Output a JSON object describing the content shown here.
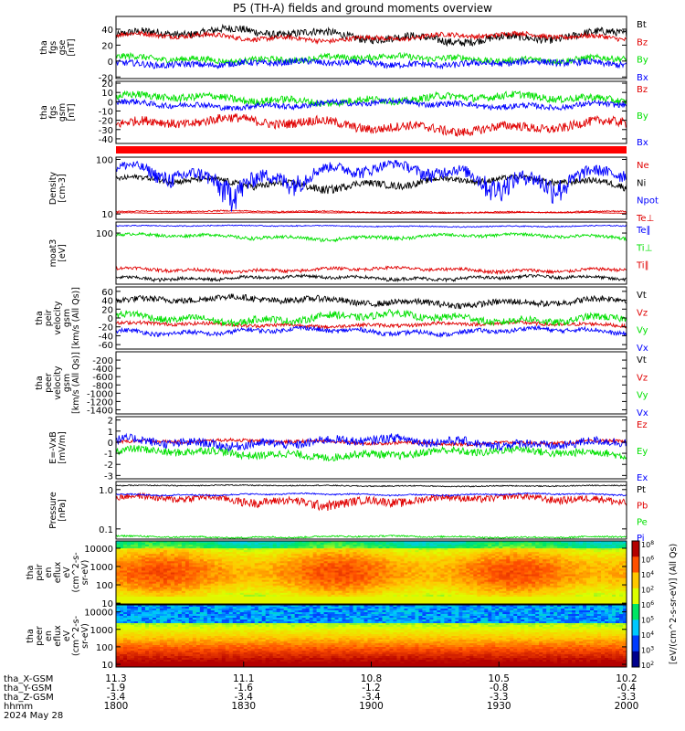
{
  "title": "P5 (TH-A) fields and ground moments overview",
  "footer": {
    "date": "2024 May 28",
    "rows": [
      {
        "label": "tha_X-GSM",
        "values": [
          "11.3",
          "11.1",
          "10.8",
          "10.5",
          "10.2"
        ]
      },
      {
        "label": "tha_Y-GSM",
        "values": [
          "-1.9",
          "-1.6",
          "-1.2",
          "-0.8",
          "-0.4"
        ]
      },
      {
        "label": "tha_Z-GSM",
        "values": [
          "-3.4",
          "-3.4",
          "-3.4",
          "-3.3",
          "-3.3"
        ]
      },
      {
        "label": "hhmm",
        "values": [
          "1800",
          "1830",
          "1900",
          "1930",
          "2000"
        ]
      }
    ]
  },
  "chart_data": [
    {
      "type": "line",
      "ylabel": [
        "tha",
        "fgs",
        "gse",
        "[nT]"
      ],
      "ylim": [
        -22,
        56
      ],
      "ticks": [
        -20,
        0,
        20,
        40
      ],
      "series": [
        {
          "name": "Bt",
          "color": "#000000",
          "base": 32,
          "amp": 9,
          "jit": 5
        },
        {
          "name": "Bz",
          "color": "#e00000",
          "base": 30,
          "amp": 5,
          "jit": 3
        },
        {
          "name": "By",
          "color": "#00e000",
          "base": 3,
          "amp": 4,
          "jit": 4
        },
        {
          "name": "Bx",
          "color": "#0000ff",
          "base": -3,
          "amp": 3,
          "jit": 4
        }
      ]
    },
    {
      "type": "line",
      "ylabel": [
        "tha",
        "fgs",
        "gsm",
        "[nT]"
      ],
      "ylim": [
        -45,
        22
      ],
      "ticks": [
        -40,
        -30,
        -20,
        -10,
        0,
        10,
        20
      ],
      "series": [
        {
          "name": "Bz",
          "color": "#e00000",
          "base": -25,
          "amp": 8,
          "jit": 5
        },
        {
          "name": "By",
          "color": "#00e000",
          "base": 3,
          "amp": 5,
          "jit": 4
        },
        {
          "name": "Bx",
          "color": "#0000ff",
          "base": -3,
          "amp": 4,
          "jit": 3
        }
      ]
    },
    {
      "type": "line",
      "ylabel": [
        "Density",
        "[cm-3]"
      ],
      "scale": "log",
      "ylim": [
        8,
        110
      ],
      "ticks": [
        10,
        100
      ],
      "series": [
        {
          "name": "Ne",
          "color": "#e00000",
          "base": 11,
          "amp": 0.5,
          "jit": 0.3
        },
        {
          "name": "Ni",
          "color": "#000000",
          "base": 38,
          "amp": 10,
          "jit": 5
        },
        {
          "name": "Npot",
          "color": "#0000ff",
          "base": 55,
          "amp": 30,
          "jit": 15
        },
        {
          "name": "Te⊥",
          "color": "#e00000",
          "base": 10.5,
          "amp": 0.2,
          "jit": 0.1
        }
      ]
    },
    {
      "type": "line",
      "ylabel": [
        "moat3",
        "[eV]"
      ],
      "scale": "log",
      "ylim": [
        4,
        200
      ],
      "ticks": [
        100
      ],
      "series": [
        {
          "name": "Te∥",
          "color": "#0000ff",
          "base": 155,
          "amp": 8,
          "jit": 5
        },
        {
          "name": "Ti⊥",
          "color": "#00e000",
          "base": 80,
          "amp": 15,
          "jit": 8
        },
        {
          "name": "Ti∥",
          "color": "#e00000",
          "base": 10,
          "amp": 1.5,
          "jit": 1
        },
        {
          "name": "",
          "color": "#000000",
          "base": 6,
          "amp": 0.8,
          "jit": 0.6
        }
      ]
    },
    {
      "type": "line",
      "ylabel": [
        "tha",
        "peir",
        "velocity",
        "gsm",
        "[km/s (All Qs)]"
      ],
      "ylim": [
        -70,
        70
      ],
      "ticks": [
        -60,
        -40,
        -20,
        0,
        20,
        40,
        60
      ],
      "series": [
        {
          "name": "Vt",
          "color": "#000000",
          "base": 38,
          "amp": 10,
          "jit": 7
        },
        {
          "name": "Vz",
          "color": "#e00000",
          "base": -15,
          "amp": 5,
          "jit": 4
        },
        {
          "name": "Vy",
          "color": "#00e000",
          "base": 0,
          "amp": 12,
          "jit": 8
        },
        {
          "name": "Vx",
          "color": "#0000ff",
          "base": -30,
          "amp": 8,
          "jit": 5
        }
      ]
    },
    {
      "type": "line",
      "ylabel": [
        "tha",
        "peer",
        "velocity",
        "gsm",
        "[km/s (All Qs)]"
      ],
      "ylim": [
        -1500,
        0
      ],
      "ticks": [
        -1400,
        -1200,
        -1000,
        -800,
        -600,
        -400,
        -200
      ],
      "series": [
        {
          "name": "Vt",
          "color": "#000000",
          "base": 0,
          "amp": 0,
          "jit": 0,
          "hidden": true
        },
        {
          "name": "Vz",
          "color": "#e00000",
          "base": 0,
          "amp": 0,
          "jit": 0,
          "hidden": true
        },
        {
          "name": "Vy",
          "color": "#00e000",
          "base": 0,
          "amp": 0,
          "jit": 0,
          "hidden": true
        },
        {
          "name": "Vx",
          "color": "#0000ff",
          "base": 0,
          "amp": 0,
          "jit": 0,
          "hidden": true
        }
      ]
    },
    {
      "type": "line",
      "ylabel": [
        "E=-VxB",
        "[mV/m]"
      ],
      "ylim": [
        -3.3,
        2.3
      ],
      "ticks": [
        -3,
        -2,
        -1,
        0,
        1,
        2
      ],
      "series": [
        {
          "name": "Ez",
          "color": "#e00000",
          "base": 0,
          "amp": 0.2,
          "jit": 0.15
        },
        {
          "name": "Ey",
          "color": "#00e000",
          "base": -1,
          "amp": 0.4,
          "jit": 0.35
        },
        {
          "name": "Ex",
          "color": "#0000ff",
          "base": 0,
          "amp": 0.4,
          "jit": 0.4
        }
      ]
    },
    {
      "type": "line",
      "ylabel": [
        "Pressure",
        "[nPa]"
      ],
      "scale": "log",
      "ylim": [
        0.055,
        1.6
      ],
      "ticks": [
        0.1,
        1.0
      ],
      "ticklabels": [
        "0.1",
        "1.0"
      ],
      "series": [
        {
          "name": "Pt",
          "color": "#000000",
          "base": 1.25,
          "amp": 0.05,
          "jit": 0.04
        },
        {
          "name": "Pb",
          "color": "#e00000",
          "base": 0.55,
          "amp": 0.15,
          "jit": 0.12
        },
        {
          "name": "Pe",
          "color": "#00e000",
          "base": 0.063,
          "amp": 0.004,
          "jit": 0.003
        },
        {
          "name": "Pi",
          "color": "#0000ff",
          "base": 0.75,
          "amp": 0.05,
          "jit": 0.03
        }
      ]
    },
    {
      "type": "heatmap",
      "ylabel": [
        "tha",
        "peir",
        "en",
        "eflux",
        "eV",
        "(cm^2-s-",
        "sr-eV)"
      ],
      "scale": "log",
      "ylim": [
        9,
        25000
      ],
      "ticks": [
        10,
        100,
        1000,
        10000
      ],
      "ticklabels": [
        "10",
        "100",
        "1000",
        "10000"
      ],
      "variant": "ion"
    },
    {
      "type": "heatmap",
      "ylabel": [
        "tha",
        "peer",
        "en",
        "eflux",
        "eV",
        "(cm^2-s-",
        "sr-eV)"
      ],
      "scale": "log",
      "ylim": [
        7,
        25000
      ],
      "ticks": [
        10,
        100,
        1000,
        10000
      ],
      "ticklabels": [
        "10",
        "100",
        "1000",
        "10000"
      ],
      "variant": "electron"
    }
  ],
  "colorbar": {
    "label": "[eV/(cm^2-s-sr-eV)] (All Qs)",
    "ticks": [
      "10^2",
      "10^3",
      "10^4",
      "10^5",
      "10^6",
      "10^2",
      "10^4",
      "10^6",
      "10^8"
    ]
  }
}
